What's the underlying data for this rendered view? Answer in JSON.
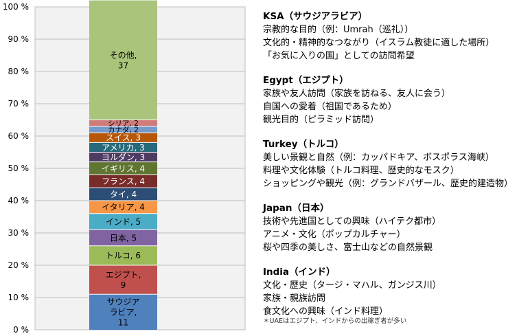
{
  "chart_data": {
    "type": "bar",
    "stacked": true,
    "ylim": [
      0,
      100
    ],
    "yticks": [
      "0 %",
      "10 %",
      "20 %",
      "30 %",
      "40 %",
      "50 %",
      "60 %",
      "70 %",
      "80 %",
      "90 %",
      "100 %"
    ],
    "grid": true,
    "legend": "none",
    "xlabel": "",
    "ylabel": "",
    "title": "",
    "series": [
      {
        "name": "サウジアラビア",
        "label": "サウジアラビア, 11",
        "value": 11,
        "color": "#4f81bd"
      },
      {
        "name": "エジプト",
        "label": "エジプト, 9",
        "value": 9,
        "color": "#c0504d"
      },
      {
        "name": "トルコ",
        "label": "トルコ, 6",
        "value": 6,
        "color": "#9bbb59"
      },
      {
        "name": "日本",
        "label": "日本, 5",
        "value": 5,
        "color": "#8064a2"
      },
      {
        "name": "インド",
        "label": "インド, 5",
        "value": 5,
        "color": "#4bacc6"
      },
      {
        "name": "イタリア",
        "label": "イタリア, 4",
        "value": 4,
        "color": "#f79646"
      },
      {
        "name": "タイ",
        "label": "タイ, 4",
        "value": 4,
        "color": "#2c4d75"
      },
      {
        "name": "フランス",
        "label": "フランス, 4",
        "value": 4,
        "color": "#772c2a"
      },
      {
        "name": "イギリス",
        "label": "イギリス, 4",
        "value": 4,
        "color": "#5f7530"
      },
      {
        "name": "ヨルダン",
        "label": "ヨルダン, 3",
        "value": 3,
        "color": "#4d3b62"
      },
      {
        "name": "アメリカ",
        "label": "アメリカ, 3",
        "value": 3,
        "color": "#276a7c"
      },
      {
        "name": "スイス",
        "label": "スイス, 3",
        "value": 3,
        "color": "#b65708"
      },
      {
        "name": "カナダ",
        "label": "カナダ, 2",
        "value": 2,
        "color": "#729aca"
      },
      {
        "name": "シリア",
        "label": "シリア, 2",
        "value": 2,
        "color": "#cf7b79"
      },
      {
        "name": "その他",
        "label": "その他, 37",
        "value": 37,
        "color": "#aac47c"
      }
    ]
  },
  "notes": [
    {
      "title": "KSA（サウジアラビア）",
      "lines": [
        "宗教的な目的（例：Umrah（巡礼））",
        "文化的・精神的なつながり（イスラム教徒に適した場所）",
        "「お気に入りの国」としての訪問希望"
      ]
    },
    {
      "title": "Egypt（エジプト）",
      "lines": [
        "家族や友人訪問（家族を訪ねる、友人に会う）",
        "自国への愛着（祖国であるため）",
        "観光目的（ピラミッド訪問）"
      ]
    },
    {
      "title": "Turkey（トルコ）",
      "lines": [
        "美しい景観と自然（例：カッパドキア、ボスポラス海峡）",
        "料理や文化体験（トルコ料理、歴史的なモスク）",
        "ショッピングや観光（例：グランドバザール、歴史的建造物）"
      ]
    },
    {
      "title": "Japan（日本）",
      "lines": [
        "技術や先進国としての興味（ハイテク都市）",
        "アニメ・文化（ポップカルチャー）",
        "桜や四季の美しさ、富士山などの自然景観"
      ]
    },
    {
      "title": "India（インド）",
      "lines": [
        "文化・歴史（タージ・マハル、ガンジス川）",
        "家族・親族訪問",
        "食文化への興味（インド料理）"
      ]
    }
  ],
  "footnote": "＊UAEはエジプト、インドからの出稼ぎ者が多い"
}
